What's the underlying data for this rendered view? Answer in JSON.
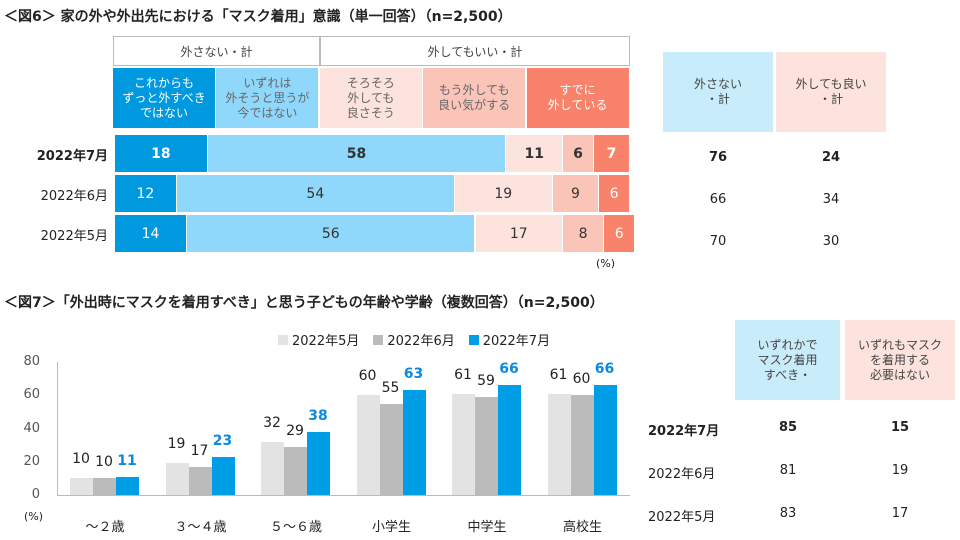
{
  "colors": {
    "dark_blue": "#0099e0",
    "light_blue": "#8fd8fb",
    "pale_pink": "#fde3de",
    "mid_pink": "#fbc4b8",
    "salmon": "#f8826a",
    "gray_light": "#e3e3e3",
    "gray": "#bbbbbb",
    "blue": "#009ee6"
  },
  "fig6": {
    "title": "＜図6＞ 家の外や外出先における「マスク着用」意識（単一回答）（n=2,500）",
    "group_headers": [
      "外さない・計",
      "外してもいい・計"
    ],
    "categories": [
      "これからも\nずっと外すべき\nではない",
      "いずれは\n外そうと思うが\n今ではない",
      "そろそろ\n外しても\n良さそう",
      "もう外しても\n良い気がする",
      "すでに\n外している"
    ],
    "unit": "(%)",
    "summary_headers": [
      "外さない\n・計",
      "外しても良い\n・計"
    ]
  },
  "chart_data": [
    {
      "type": "bar",
      "stacked": true,
      "orientation": "horizontal",
      "title": "＜図6＞ 家の外や外出先における「マスク着用」意識（単一回答）（n=2,500）",
      "categories": [
        "2022年7月",
        "2022年6月",
        "2022年5月"
      ],
      "series": [
        {
          "name": "これからもずっと外すべきではない",
          "values": [
            18,
            12,
            14
          ]
        },
        {
          "name": "いずれは外そうと思うが今ではない",
          "values": [
            58,
            54,
            56
          ]
        },
        {
          "name": "そろそろ外しても良さそう",
          "values": [
            11,
            19,
            17
          ]
        },
        {
          "name": "もう外しても良い気がする",
          "values": [
            6,
            9,
            8
          ]
        },
        {
          "name": "すでに外している",
          "values": [
            7,
            6,
            6
          ]
        }
      ],
      "summary": {
        "外さない・計": [
          76,
          66,
          70
        ],
        "外しても良い・計": [
          24,
          34,
          30
        ]
      },
      "ylabel": "(%)"
    },
    {
      "type": "bar",
      "title": "＜図7＞「外出時にマスクを着用すべき」と思う子どもの年齢や学齢（複数回答）（n=2,500）",
      "categories": [
        "～２歳",
        "３～４歳",
        "５～６歳",
        "小学生",
        "中学生",
        "高校生"
      ],
      "series": [
        {
          "name": "2022年5月",
          "values": [
            10,
            19,
            32,
            60,
            61,
            61
          ]
        },
        {
          "name": "2022年6月",
          "values": [
            10,
            17,
            29,
            55,
            59,
            60
          ]
        },
        {
          "name": "2022年7月",
          "values": [
            11,
            23,
            38,
            63,
            66,
            66
          ]
        }
      ],
      "ylim": [
        0,
        80
      ],
      "yticks": [
        0,
        20,
        40,
        60,
        80
      ],
      "ylabel": "(%)",
      "legend": "top",
      "summary_headers": [
        "いずれかで\nマスク着用\nすべき・",
        "いずれもマスク\nを着用する\n必要はない"
      ],
      "summary_rows": [
        "2022年7月",
        "2022年6月",
        "2022年5月"
      ],
      "summary": {
        "いずれかでマスク着用すべき": [
          85,
          81,
          83
        ],
        "いずれもマスクを着用する必要はない": [
          15,
          19,
          17
        ]
      }
    }
  ]
}
